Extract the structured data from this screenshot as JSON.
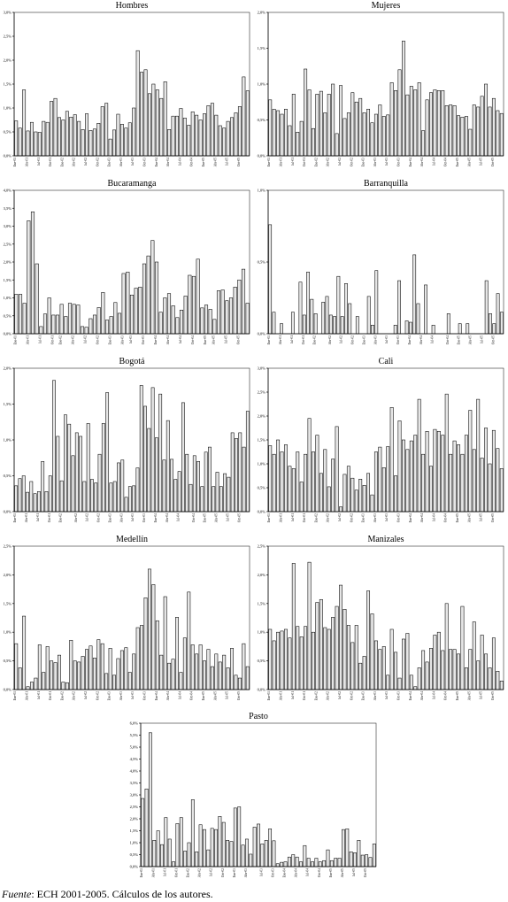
{
  "source": {
    "label": "Fuente",
    "text": ": ECH 2001-2005. Cálculos de los autores."
  },
  "x_tick_labels": [
    "Ene-01",
    "Abr-01",
    "Jul-01",
    "Oct-01",
    "Ene-02",
    "Abr-02",
    "Jul-02",
    "Oct-02",
    "Ene-03",
    "Abr-03",
    "Jul-03",
    "Oct-03",
    "Ene-04",
    "Abr-04",
    "Jul-04",
    "Oct-04",
    "Ene-05",
    "Abr-05",
    "Jul-05",
    "Oct-05"
  ],
  "chart_data": [
    {
      "type": "bar",
      "title": "Hombres",
      "ylim": [
        0,
        3.0
      ],
      "ytick_labels": [
        "0,0%",
        "0,5%",
        "1,0%",
        "1,5%",
        "2,0%",
        "2,5%",
        "3,0%"
      ],
      "values": [
        0.73,
        0.58,
        1.38,
        0.52,
        0.7,
        0.5,
        0.49,
        0.72,
        0.7,
        1.14,
        1.2,
        0.8,
        0.75,
        0.93,
        0.81,
        0.86,
        0.72,
        0.55,
        0.88,
        0.53,
        0.56,
        0.68,
        1.03,
        1.1,
        0.35,
        0.54,
        0.87,
        0.66,
        0.58,
        0.69,
        1.0,
        2.2,
        1.75,
        1.8,
        1.3,
        1.5,
        1.38,
        1.2,
        1.55,
        0.55,
        0.83,
        0.83,
        0.99,
        0.79,
        0.64,
        0.92,
        0.85,
        0.75,
        0.88,
        1.05,
        1.1,
        0.85,
        0.63,
        0.58,
        0.72,
        0.8,
        0.9,
        1.03,
        1.65,
        1.36
      ]
    },
    {
      "type": "bar",
      "title": "Mujeres",
      "ylim": [
        0,
        2.0
      ],
      "ytick_labels": [
        "0,0%",
        "0,5%",
        "1,0%",
        "1,5%",
        "2,0%"
      ],
      "values": [
        0.78,
        0.65,
        0.63,
        0.58,
        0.65,
        0.42,
        0.86,
        0.33,
        0.48,
        1.21,
        0.92,
        0.38,
        0.86,
        0.9,
        0.6,
        0.86,
        1.0,
        0.31,
        0.98,
        0.52,
        0.6,
        0.88,
        0.75,
        0.8,
        0.6,
        0.65,
        0.46,
        0.58,
        0.71,
        0.55,
        0.57,
        1.02,
        0.91,
        1.2,
        1.6,
        0.85,
        0.97,
        0.92,
        1.02,
        0.35,
        0.78,
        0.88,
        0.92,
        0.91,
        0.91,
        0.7,
        0.71,
        0.7,
        0.56,
        0.54,
        0.55,
        0.37,
        0.71,
        0.68,
        0.83,
        1.0,
        0.68,
        0.8,
        0.63,
        0.59
      ]
    },
    {
      "type": "bar",
      "title": "Bucaramanga",
      "ylim": [
        0,
        4.0
      ],
      "ytick_labels": [
        "0,0%",
        "0,5%",
        "1,0%",
        "1,5%",
        "2,0%",
        "2,5%",
        "3,0%",
        "3,5%",
        "4,0%"
      ],
      "values": [
        1.1,
        1.1,
        0.85,
        3.15,
        3.4,
        1.95,
        0.2,
        0.55,
        1.0,
        0.52,
        0.52,
        0.82,
        0.48,
        0.85,
        0.82,
        0.8,
        0.2,
        0.18,
        0.42,
        0.52,
        0.73,
        1.15,
        0.38,
        0.48,
        0.87,
        0.57,
        1.68,
        1.72,
        1.08,
        1.27,
        1.3,
        1.95,
        2.17,
        2.6,
        2.0,
        0.6,
        1.0,
        1.12,
        0.78,
        0.45,
        0.66,
        1.05,
        1.63,
        1.6,
        2.08,
        0.72,
        0.8,
        0.68,
        0.4,
        1.2,
        1.22,
        0.92,
        1.0,
        1.3,
        1.5,
        1.8,
        0.85
      ]
    },
    {
      "type": "bar",
      "title": "Barranquilla",
      "ylim": [
        0,
        1.0
      ],
      "ytick_labels": [
        "0,0%",
        "0,5%",
        "1,0%"
      ],
      "values": [
        0.76,
        0.15,
        0,
        0.07,
        0,
        0,
        0.15,
        0,
        0.36,
        0.13,
        0.43,
        0.24,
        0.14,
        0,
        0.22,
        0.26,
        0.13,
        0.12,
        0.4,
        0.12,
        0.35,
        0.21,
        0,
        0.12,
        0,
        0,
        0.26,
        0.06,
        0.44,
        0,
        0,
        0,
        0,
        0.06,
        0.37,
        0,
        0.09,
        0.08,
        0.55,
        0.21,
        0,
        0.34,
        0,
        0.06,
        0,
        0,
        0,
        0.14,
        0,
        0,
        0.07,
        0,
        0.07,
        0,
        0,
        0,
        0,
        0.37,
        0.14,
        0.07,
        0.28,
        0.15
      ]
    },
    {
      "type": "bar",
      "title": "Bogotá",
      "ylim": [
        0,
        2.0
      ],
      "ytick_labels": [
        "0,0%",
        "0,5%",
        "1,0%",
        "1,5%",
        "2,0%"
      ],
      "values": [
        0.36,
        0.46,
        0.5,
        0.27,
        0.42,
        0.25,
        0.28,
        0.7,
        0.28,
        0.5,
        1.83,
        1.05,
        0.43,
        1.35,
        1.22,
        0.78,
        1.1,
        1.05,
        0.42,
        1.23,
        0.45,
        0.4,
        0.8,
        1.23,
        1.66,
        0.4,
        0.42,
        0.68,
        0.72,
        0.2,
        0.35,
        0.36,
        0.61,
        1.76,
        1.47,
        1.16,
        1.73,
        1.03,
        1.64,
        0.72,
        1.27,
        0.73,
        0.45,
        0.56,
        1.52,
        0.8,
        0.38,
        0.78,
        0.7,
        0.35,
        0.83,
        0.9,
        0.35,
        0.55,
        0.35,
        0.53,
        0.48,
        1.1,
        1.02,
        1.1,
        0.9,
        1.4
      ]
    },
    {
      "type": "bar",
      "title": "Cali",
      "ylim": [
        0,
        3.0
      ],
      "ytick_labels": [
        "0,0%",
        "0,5%",
        "1,0%",
        "1,5%",
        "2,0%",
        "2,5%",
        "3,0%"
      ],
      "values": [
        1.38,
        1.2,
        1.5,
        1.25,
        1.4,
        0.95,
        0.9,
        1.25,
        0.62,
        1.2,
        1.95,
        1.25,
        1.6,
        0.8,
        1.3,
        0.52,
        1.1,
        1.78,
        0.1,
        0.78,
        0.95,
        0.7,
        0.45,
        0.68,
        0.55,
        0.8,
        0.35,
        1.25,
        1.35,
        0.92,
        1.36,
        2.18,
        0.75,
        1.9,
        1.5,
        1.3,
        1.48,
        1.6,
        2.35,
        1.2,
        1.68,
        0.95,
        1.72,
        1.68,
        1.6,
        2.46,
        1.2,
        1.48,
        1.4,
        1.2,
        1.6,
        2.12,
        1.3,
        2.35,
        1.12,
        1.75,
        1.0,
        1.7,
        1.32,
        0.9
      ]
    },
    {
      "type": "bar",
      "title": "Medellín",
      "ylim": [
        0,
        2.5
      ],
      "ytick_labels": [
        "0,0%",
        "0,5%",
        "1,0%",
        "1,5%",
        "2,0%",
        "2,5%"
      ],
      "values": [
        0.8,
        0.38,
        1.28,
        0.05,
        0.13,
        0.2,
        0.78,
        0.3,
        0.75,
        0.5,
        0.47,
        0.6,
        0.13,
        0.12,
        0.86,
        0.5,
        0.48,
        0.58,
        0.7,
        0.76,
        0.55,
        0.87,
        0.8,
        0.28,
        0.72,
        0.25,
        0.54,
        0.68,
        0.73,
        0.3,
        0.62,
        1.08,
        1.12,
        1.6,
        2.1,
        1.83,
        1.2,
        0.6,
        1.62,
        0.46,
        0.53,
        1.26,
        0.3,
        0.9,
        1.7,
        0.78,
        0.62,
        0.78,
        0.5,
        0.7,
        0.4,
        0.62,
        0.48,
        0.6,
        0.38,
        0.72,
        0.25,
        0.2,
        0.8,
        0.4
      ]
    },
    {
      "type": "bar",
      "title": "Manizales",
      "ylim": [
        0,
        2.5
      ],
      "ytick_labels": [
        "0,0%",
        "0,5%",
        "1,0%",
        "1,5%",
        "2,0%",
        "2,5%"
      ],
      "values": [
        1.05,
        0.85,
        1.0,
        1.02,
        1.05,
        0.9,
        2.2,
        1.1,
        0.92,
        1.1,
        2.22,
        1.0,
        1.52,
        1.57,
        1.08,
        1.05,
        1.26,
        1.45,
        1.82,
        1.4,
        1.12,
        0.82,
        1.12,
        0.46,
        0.58,
        1.72,
        1.32,
        0.85,
        0.7,
        0.75,
        0.25,
        1.05,
        0.65,
        0.2,
        0.88,
        0.98,
        0.25,
        0.05,
        0.38,
        0.68,
        0.48,
        0.72,
        0.95,
        1.0,
        0.68,
        1.5,
        0.7,
        0.7,
        0.62,
        1.45,
        0.38,
        0.7,
        1.18,
        0.5,
        0.95,
        0.62,
        0.38,
        0.9,
        0.32,
        0.15
      ]
    },
    {
      "type": "bar",
      "title": "Pasto",
      "ylim": [
        0,
        6.0
      ],
      "ytick_labels": [
        "0,0%",
        "0,5%",
        "1,0%",
        "1,5%",
        "2,0%",
        "2,5%",
        "3,0%",
        "3,5%",
        "4,0%",
        "4,5%",
        "5,0%",
        "5,5%",
        "6,0%"
      ],
      "values": [
        2.85,
        3.25,
        5.6,
        1.1,
        1.5,
        0.92,
        2.05,
        1.15,
        0.2,
        1.8,
        2.05,
        0.65,
        1.0,
        2.8,
        0.62,
        1.75,
        1.55,
        0.7,
        1.6,
        1.55,
        2.1,
        1.85,
        1.1,
        1.05,
        2.45,
        2.5,
        0.9,
        1.15,
        0.52,
        1.65,
        1.78,
        0.95,
        1.1,
        1.58,
        1.08,
        0.12,
        0.18,
        0.2,
        0.4,
        0.5,
        0.4,
        0.2,
        0.88,
        0.35,
        0.2,
        0.35,
        0.2,
        0.25,
        0.7,
        0.25,
        0.35,
        0.35,
        1.55,
        1.58,
        0.62,
        0.58,
        1.1,
        0.48,
        0.5,
        0.38,
        0.95
      ]
    }
  ]
}
